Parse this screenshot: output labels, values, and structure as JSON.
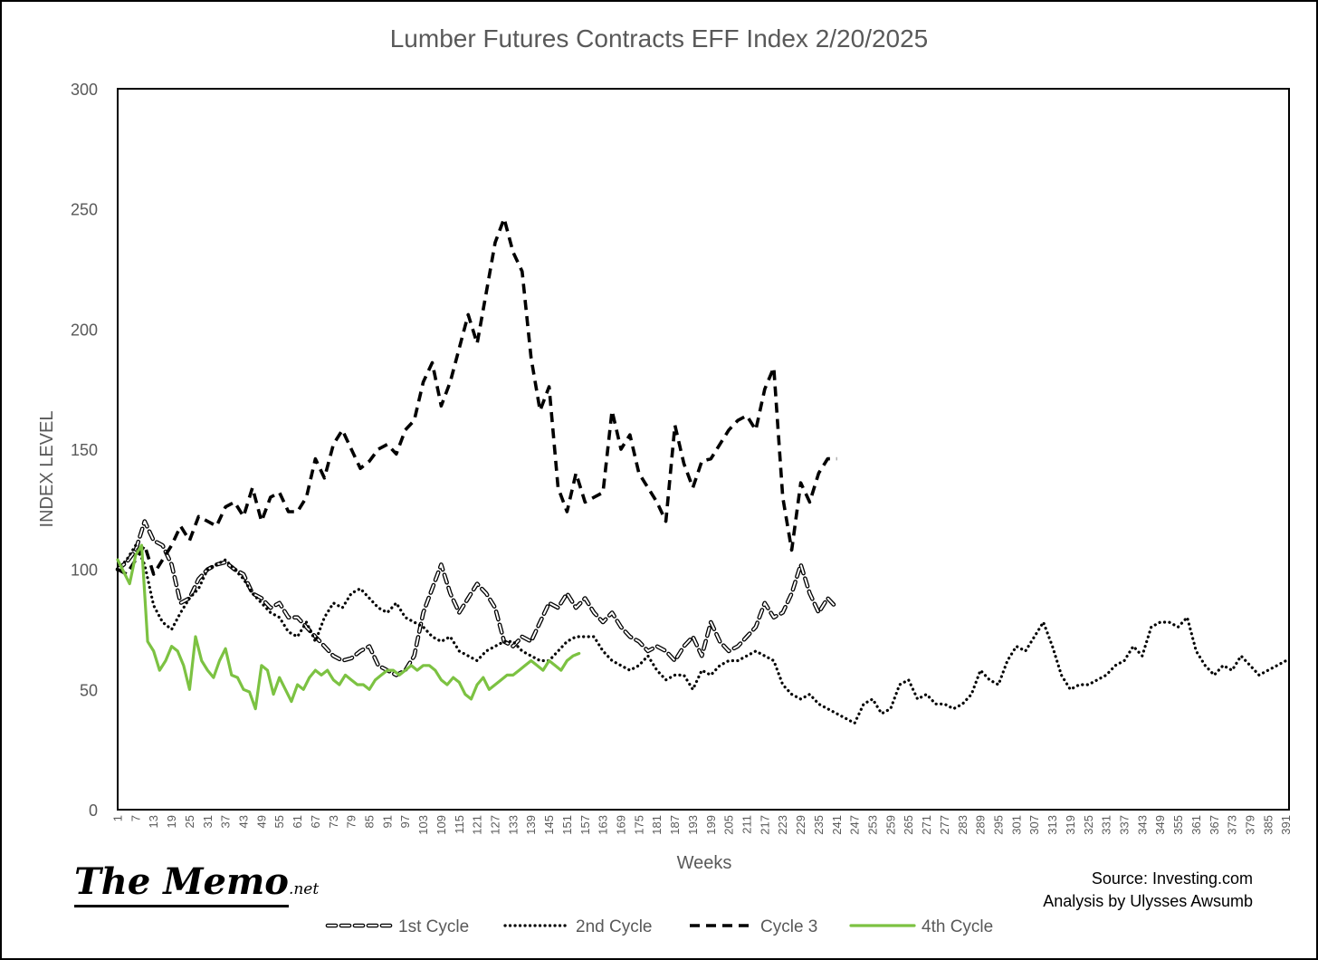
{
  "branding": {
    "logo": "The Memo",
    "logo_suffix": ".net",
    "source_line": "Source: Investing.com",
    "analysis_line": "Analysis by Ulysses Awsumb"
  },
  "colors": {
    "axis": "#000000",
    "text": "#595959",
    "cycle1": "#000000",
    "cycle2": "#000000",
    "cycle3": "#000000",
    "cycle4": "#7CC242"
  },
  "chart_data": {
    "type": "line",
    "title": "Lumber Futures Contracts  EFF Index 2/20/2025",
    "xlabel": "Weeks",
    "ylabel": "INDEX LEVEL",
    "xlim": [
      1,
      392
    ],
    "ylim": [
      0,
      300
    ],
    "yticks": [
      "0",
      "50",
      "100",
      "150",
      "200",
      "250",
      "300"
    ],
    "xtick_start": 1,
    "xtick_step": 6,
    "xtick_end": 391,
    "grid": false,
    "legend_position": "bottom",
    "series": [
      {
        "name": "1st Cycle",
        "style": "outlined-dash",
        "x": [
          1,
          4,
          7,
          10,
          13,
          16,
          19,
          22,
          25,
          28,
          31,
          34,
          37,
          40,
          43,
          46,
          49,
          52,
          55,
          58,
          61,
          64,
          67,
          70,
          73,
          76,
          79,
          82,
          85,
          88,
          91,
          94,
          97,
          100,
          103,
          106,
          109,
          112,
          115,
          118,
          121,
          124,
          127,
          130,
          133,
          136,
          139,
          142,
          145,
          148,
          151,
          154,
          157,
          160,
          163,
          166,
          169,
          172,
          175,
          178,
          181,
          184,
          187,
          190,
          193,
          196,
          199,
          202,
          205,
          208,
          211,
          214,
          217,
          220,
          223,
          226,
          229,
          232,
          235,
          238,
          241
        ],
        "y": [
          100,
          103,
          108,
          120,
          112,
          110,
          102,
          86,
          88,
          96,
          100,
          102,
          103,
          100,
          98,
          90,
          88,
          84,
          86,
          80,
          80,
          76,
          72,
          68,
          64,
          62,
          63,
          66,
          68,
          60,
          58,
          56,
          58,
          64,
          82,
          92,
          102,
          90,
          82,
          88,
          94,
          90,
          84,
          70,
          68,
          72,
          70,
          78,
          86,
          84,
          90,
          84,
          88,
          82,
          78,
          82,
          76,
          72,
          70,
          66,
          68,
          66,
          62,
          68,
          72,
          64,
          78,
          70,
          66,
          68,
          72,
          76,
          86,
          80,
          82,
          90,
          102,
          90,
          82,
          88,
          84
        ]
      },
      {
        "name": "2nd Cycle",
        "style": "dotted",
        "x": [
          1,
          4,
          7,
          10,
          13,
          16,
          19,
          22,
          25,
          28,
          31,
          34,
          37,
          40,
          43,
          46,
          49,
          52,
          55,
          58,
          61,
          64,
          67,
          70,
          73,
          76,
          79,
          82,
          85,
          88,
          91,
          94,
          97,
          100,
          103,
          106,
          109,
          112,
          115,
          118,
          121,
          124,
          127,
          130,
          133,
          136,
          139,
          142,
          145,
          148,
          151,
          154,
          157,
          160,
          163,
          166,
          169,
          172,
          175,
          178,
          181,
          184,
          187,
          190,
          193,
          196,
          199,
          202,
          205,
          208,
          211,
          214,
          217,
          220,
          223,
          226,
          229,
          232,
          235,
          238,
          241,
          244,
          247,
          250,
          253,
          256,
          259,
          262,
          265,
          268,
          271,
          274,
          277,
          280,
          283,
          286,
          289,
          292,
          295,
          298,
          301,
          304,
          307,
          310,
          313,
          316,
          319,
          322,
          325,
          328,
          331,
          334,
          337,
          340,
          343,
          346,
          349,
          352,
          355,
          358,
          361,
          364,
          367,
          370,
          373,
          376,
          379,
          382,
          385,
          388,
          391
        ],
        "y": [
          100,
          104,
          110,
          102,
          85,
          78,
          75,
          82,
          88,
          92,
          100,
          102,
          104,
          100,
          96,
          90,
          86,
          82,
          80,
          74,
          72,
          78,
          70,
          80,
          86,
          84,
          90,
          92,
          88,
          84,
          82,
          86,
          80,
          78,
          76,
          72,
          70,
          72,
          66,
          64,
          62,
          66,
          68,
          70,
          70,
          66,
          64,
          62,
          62,
          66,
          70,
          72,
          72,
          72,
          66,
          62,
          60,
          58,
          60,
          64,
          58,
          54,
          56,
          56,
          50,
          58,
          56,
          60,
          62,
          62,
          64,
          66,
          64,
          62,
          52,
          48,
          46,
          48,
          44,
          42,
          40,
          38,
          36,
          44,
          46,
          40,
          42,
          52,
          54,
          46,
          48,
          44,
          44,
          42,
          44,
          48,
          58,
          54,
          52,
          62,
          68,
          66,
          72,
          78,
          68,
          56,
          50,
          52,
          52,
          54,
          56,
          60,
          62,
          68,
          64,
          76,
          78,
          78,
          76,
          80,
          66,
          60,
          56,
          60,
          58,
          64,
          60,
          56,
          58,
          60,
          62
        ]
      },
      {
        "name": "Cycle 3",
        "style": "dashed",
        "x": [
          1,
          4,
          7,
          10,
          13,
          16,
          19,
          22,
          25,
          28,
          31,
          34,
          37,
          40,
          43,
          46,
          49,
          52,
          55,
          58,
          61,
          64,
          67,
          70,
          73,
          76,
          79,
          82,
          85,
          88,
          91,
          94,
          97,
          100,
          103,
          106,
          109,
          112,
          115,
          118,
          121,
          124,
          127,
          130,
          133,
          136,
          139,
          142,
          145,
          148,
          151,
          154,
          157,
          160,
          163,
          166,
          169,
          172,
          175,
          178,
          181,
          184,
          187,
          190,
          193,
          196,
          199,
          202,
          205,
          208,
          211,
          214,
          217,
          220,
          223,
          226,
          229,
          232,
          235,
          238,
          241
        ],
        "y": [
          100,
          98,
          104,
          110,
          98,
          104,
          110,
          118,
          112,
          122,
          120,
          118,
          126,
          128,
          122,
          134,
          120,
          130,
          132,
          124,
          124,
          130,
          146,
          138,
          152,
          158,
          150,
          142,
          145,
          150,
          152,
          148,
          158,
          162,
          178,
          186,
          168,
          178,
          192,
          206,
          194,
          215,
          236,
          246,
          232,
          224,
          188,
          166,
          176,
          134,
          124,
          140,
          128,
          130,
          132,
          166,
          150,
          156,
          140,
          134,
          128,
          120,
          160,
          144,
          134,
          145,
          146,
          152,
          158,
          162,
          164,
          158,
          175,
          184,
          130,
          108,
          136,
          128,
          140,
          146,
          146
        ]
      },
      {
        "name": "4th Cycle",
        "style": "solid",
        "x": [
          1,
          3,
          5,
          7,
          9,
          11,
          13,
          15,
          17,
          19,
          21,
          23,
          25,
          27,
          29,
          31,
          33,
          35,
          37,
          39,
          41,
          43,
          45,
          47,
          49,
          51,
          53,
          55,
          57,
          59,
          61,
          63,
          65,
          67,
          69,
          71,
          73,
          75,
          77,
          79,
          81,
          83,
          85,
          87,
          89,
          91,
          93,
          95,
          97,
          99,
          101,
          103,
          105,
          107,
          109,
          111,
          113,
          115,
          117,
          119,
          121,
          123,
          125,
          127,
          129,
          131,
          133,
          135,
          137,
          139,
          141,
          143,
          145,
          147,
          149,
          151,
          153,
          155
        ],
        "y": [
          104,
          99,
          94,
          106,
          110,
          70,
          66,
          58,
          62,
          68,
          66,
          60,
          50,
          72,
          62,
          58,
          55,
          62,
          67,
          56,
          55,
          50,
          49,
          42,
          60,
          58,
          48,
          55,
          50,
          45,
          52,
          50,
          55,
          58,
          56,
          58,
          54,
          52,
          56,
          54,
          52,
          52,
          50,
          54,
          56,
          58,
          58,
          56,
          58,
          60,
          58,
          60,
          60,
          58,
          54,
          52,
          55,
          53,
          48,
          46,
          52,
          55,
          50,
          52,
          54,
          56,
          56,
          58,
          60,
          62,
          60,
          58,
          62,
          60,
          58,
          62,
          64,
          65
        ]
      }
    ]
  }
}
